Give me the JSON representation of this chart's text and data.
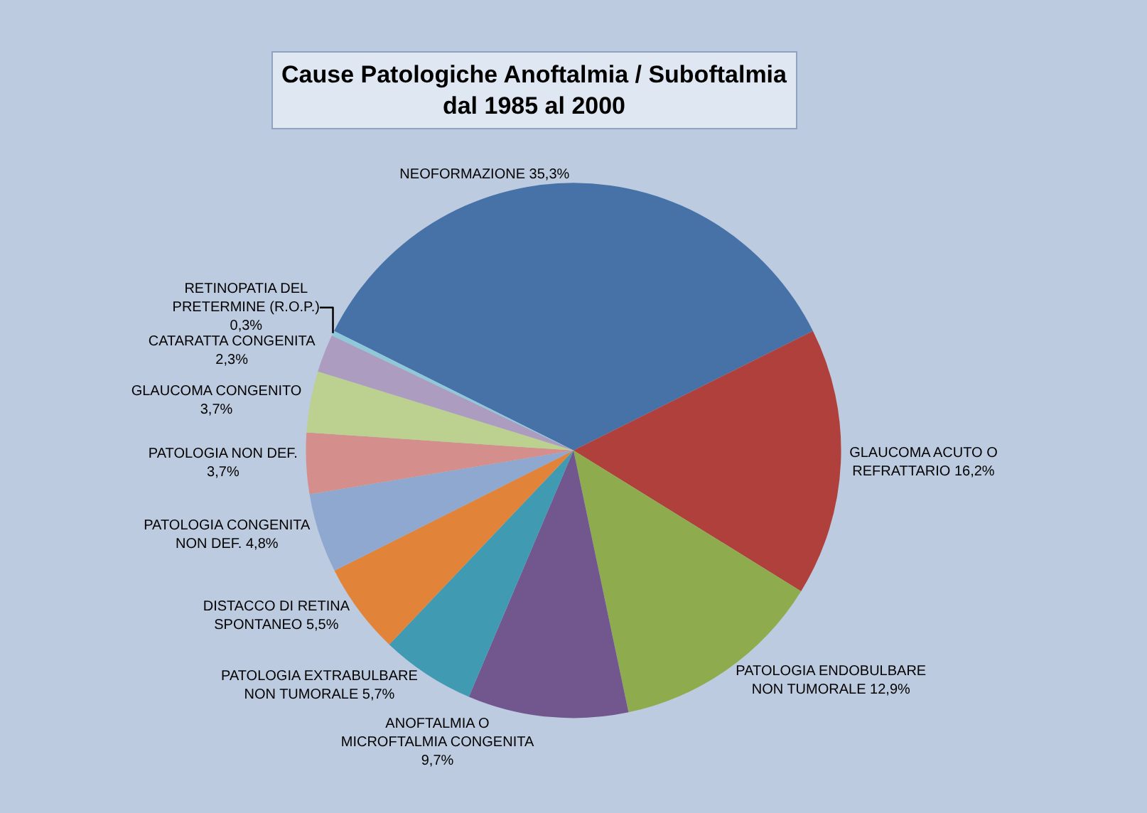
{
  "chart_data": {
    "type": "pie",
    "title": "Cause Patologiche Anoftalmia / Suboftalmia\ndal 1985 al 2000",
    "categories": [
      "NEOFORMAZIONE",
      "GLAUCOMA ACUTO O REFRATTARIO",
      "PATOLOGIA ENDOBULBARE NON TUMORALE",
      "ANOFTALMIA O MICROFTALMIA CONGENITA",
      "PATOLOGIA EXTRABULBARE NON TUMORALE",
      "DISTACCO DI RETINA SPONTANEO",
      "PATOLOGIA CONGENITA NON DEF.",
      "PATOLOGIA NON DEF.",
      "GLAUCOMA CONGENITO",
      "CATARATTA CONGENITA",
      "RETINOPATIA DEL PRETERMINE (R.O.P.)"
    ],
    "values": [
      35.3,
      16.2,
      12.9,
      9.7,
      5.7,
      5.5,
      4.8,
      3.7,
      3.7,
      2.3,
      0.3
    ],
    "value_labels": [
      "35,3%",
      "16,2%",
      "12,9%",
      "9,7%",
      "5,7%",
      "5,5%",
      "4,8%",
      "3,7%",
      "3,7%",
      "2,3%",
      "0,3%"
    ],
    "colors": [
      "#4672a8",
      "#b0403c",
      "#8eac4e",
      "#72578f",
      "#3f9ab2",
      "#e2833a",
      "#8fa8cf",
      "#d48e8c",
      "#bcd08f",
      "#ab9cc0",
      "#8fc8d8"
    ],
    "legend": false
  }
}
